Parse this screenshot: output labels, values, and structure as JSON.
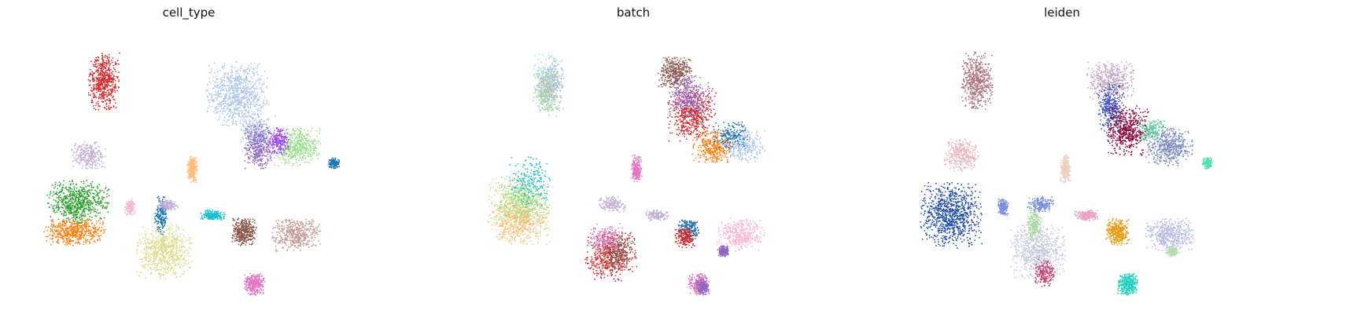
{
  "chart_data": [
    {
      "type": "scatter",
      "title": "cell_type",
      "xlabel": "",
      "ylabel": "",
      "grid": false,
      "axes_visible": false,
      "legend": "none",
      "clusters": [
        {
          "color": "#d62728",
          "x": 0.255,
          "y": 0.82,
          "rx": 0.045,
          "ry": 0.105,
          "density": 1.0
        },
        {
          "color": "#c5b0d5",
          "x": 0.21,
          "y": 0.55,
          "rx": 0.05,
          "ry": 0.05,
          "density": 0.7
        },
        {
          "color": "#2ca02c",
          "x": 0.18,
          "y": 0.38,
          "rx": 0.09,
          "ry": 0.08,
          "density": 1.0
        },
        {
          "color": "#ff7f0e",
          "x": 0.17,
          "y": 0.27,
          "rx": 0.09,
          "ry": 0.05,
          "density": 1.0
        },
        {
          "color": "#dbdb8d",
          "x": 0.43,
          "y": 0.2,
          "rx": 0.08,
          "ry": 0.1,
          "density": 1.0
        },
        {
          "color": "#1f77b4",
          "x": 0.42,
          "y": 0.33,
          "rx": 0.02,
          "ry": 0.07,
          "density": 0.5
        },
        {
          "color": "#aec7e8",
          "x": 0.64,
          "y": 0.77,
          "rx": 0.09,
          "ry": 0.12,
          "density": 1.0
        },
        {
          "color": "#aec7e8",
          "x": 0.7,
          "y": 0.62,
          "rx": 0.05,
          "ry": 0.08,
          "density": 0.8
        },
        {
          "color": "#98df8a",
          "x": 0.81,
          "y": 0.58,
          "rx": 0.07,
          "ry": 0.07,
          "density": 0.9
        },
        {
          "color": "#9467bd",
          "x": 0.7,
          "y": 0.58,
          "rx": 0.04,
          "ry": 0.08,
          "density": 0.7
        },
        {
          "color": "#a340ff",
          "x": 0.76,
          "y": 0.6,
          "rx": 0.03,
          "ry": 0.05,
          "density": 0.6
        },
        {
          "color": "#1f77b4",
          "x": 0.92,
          "y": 0.52,
          "rx": 0.015,
          "ry": 0.02,
          "density": 0.6
        },
        {
          "color": "#ffbb78",
          "x": 0.51,
          "y": 0.5,
          "rx": 0.015,
          "ry": 0.05,
          "density": 0.8
        },
        {
          "color": "#17becf",
          "x": 0.57,
          "y": 0.33,
          "rx": 0.035,
          "ry": 0.02,
          "density": 0.6
        },
        {
          "color": "#8c564b",
          "x": 0.66,
          "y": 0.27,
          "rx": 0.035,
          "ry": 0.05,
          "density": 1.0
        },
        {
          "color": "#c49c94",
          "x": 0.81,
          "y": 0.26,
          "rx": 0.07,
          "ry": 0.06,
          "density": 0.9
        },
        {
          "color": "#e377c2",
          "x": 0.69,
          "y": 0.08,
          "rx": 0.03,
          "ry": 0.04,
          "density": 1.0
        },
        {
          "color": "#f7b6d2",
          "x": 0.33,
          "y": 0.36,
          "rx": 0.015,
          "ry": 0.03,
          "density": 0.5
        },
        {
          "color": "#c5b0d5",
          "x": 0.44,
          "y": 0.37,
          "rx": 0.03,
          "ry": 0.02,
          "density": 0.5
        }
      ]
    },
    {
      "type": "scatter",
      "title": "batch",
      "xlabel": "",
      "ylabel": "",
      "grid": false,
      "axes_visible": false,
      "legend": "none",
      "clusters": [
        {
          "color": "#9edae5",
          "x": 0.255,
          "y": 0.82,
          "rx": 0.045,
          "ry": 0.1,
          "density": 0.6
        },
        {
          "color": "#98df8a",
          "x": 0.25,
          "y": 0.78,
          "rx": 0.04,
          "ry": 0.09,
          "density": 0.5
        },
        {
          "color": "#c5b0d5",
          "x": 0.26,
          "y": 0.8,
          "rx": 0.04,
          "ry": 0.09,
          "density": 0.4
        },
        {
          "color": "#dbdb8d",
          "x": 0.17,
          "y": 0.35,
          "rx": 0.09,
          "ry": 0.12,
          "density": 0.8
        },
        {
          "color": "#98df8a",
          "x": 0.18,
          "y": 0.38,
          "rx": 0.08,
          "ry": 0.1,
          "density": 0.5
        },
        {
          "color": "#ffbb78",
          "x": 0.17,
          "y": 0.3,
          "rx": 0.08,
          "ry": 0.08,
          "density": 0.5
        },
        {
          "color": "#17becf",
          "x": 0.2,
          "y": 0.45,
          "rx": 0.06,
          "ry": 0.1,
          "density": 0.3
        },
        {
          "color": "#d62728",
          "x": 0.43,
          "y": 0.18,
          "rx": 0.07,
          "ry": 0.09,
          "density": 0.7
        },
        {
          "color": "#8c564b",
          "x": 0.46,
          "y": 0.2,
          "rx": 0.05,
          "ry": 0.07,
          "density": 0.6
        },
        {
          "color": "#e377c2",
          "x": 0.42,
          "y": 0.25,
          "rx": 0.05,
          "ry": 0.05,
          "density": 0.4
        },
        {
          "color": "#8c564b",
          "x": 0.62,
          "y": 0.85,
          "rx": 0.05,
          "ry": 0.06,
          "density": 0.8
        },
        {
          "color": "#d62728",
          "x": 0.67,
          "y": 0.7,
          "rx": 0.07,
          "ry": 0.1,
          "density": 0.8
        },
        {
          "color": "#9467bd",
          "x": 0.66,
          "y": 0.76,
          "rx": 0.06,
          "ry": 0.08,
          "density": 0.6
        },
        {
          "color": "#ff7f0e",
          "x": 0.73,
          "y": 0.58,
          "rx": 0.06,
          "ry": 0.06,
          "density": 0.7
        },
        {
          "color": "#aec7e8",
          "x": 0.82,
          "y": 0.58,
          "rx": 0.06,
          "ry": 0.06,
          "density": 0.6
        },
        {
          "color": "#1f77b4",
          "x": 0.78,
          "y": 0.62,
          "rx": 0.05,
          "ry": 0.05,
          "density": 0.4
        },
        {
          "color": "#e377c2",
          "x": 0.51,
          "y": 0.5,
          "rx": 0.015,
          "ry": 0.05,
          "density": 0.7
        },
        {
          "color": "#f7b6d2",
          "x": 0.81,
          "y": 0.26,
          "rx": 0.07,
          "ry": 0.06,
          "density": 0.8
        },
        {
          "color": "#9467bd",
          "x": 0.76,
          "y": 0.2,
          "rx": 0.015,
          "ry": 0.02,
          "density": 0.7
        },
        {
          "color": "#1f77b4",
          "x": 0.66,
          "y": 0.28,
          "rx": 0.03,
          "ry": 0.04,
          "density": 0.6
        },
        {
          "color": "#d62728",
          "x": 0.65,
          "y": 0.25,
          "rx": 0.03,
          "ry": 0.04,
          "density": 0.5
        },
        {
          "color": "#c5b0d5",
          "x": 0.57,
          "y": 0.33,
          "rx": 0.035,
          "ry": 0.02,
          "density": 0.5
        },
        {
          "color": "#e377c2",
          "x": 0.69,
          "y": 0.08,
          "rx": 0.03,
          "ry": 0.04,
          "density": 0.8
        },
        {
          "color": "#9467bd",
          "x": 0.7,
          "y": 0.07,
          "rx": 0.02,
          "ry": 0.03,
          "density": 0.6
        },
        {
          "color": "#c5b0d5",
          "x": 0.44,
          "y": 0.37,
          "rx": 0.04,
          "ry": 0.03,
          "density": 0.5
        }
      ]
    },
    {
      "type": "scatter",
      "title": "leiden",
      "xlabel": "",
      "ylabel": "",
      "grid": false,
      "axes_visible": false,
      "legend": "none",
      "clusters": [
        {
          "color": "#ad7282",
          "x": 0.255,
          "y": 0.82,
          "rx": 0.045,
          "ry": 0.105,
          "density": 1.0
        },
        {
          "color": "#e8b8c1",
          "x": 0.21,
          "y": 0.55,
          "rx": 0.05,
          "ry": 0.06,
          "density": 0.8
        },
        {
          "color": "#1c4ba6",
          "x": 0.18,
          "y": 0.33,
          "rx": 0.09,
          "ry": 0.12,
          "density": 1.0
        },
        {
          "color": "#c6c8db",
          "x": 0.43,
          "y": 0.2,
          "rx": 0.08,
          "ry": 0.1,
          "density": 1.0
        },
        {
          "color": "#a8d5a2",
          "x": 0.42,
          "y": 0.3,
          "rx": 0.02,
          "ry": 0.06,
          "density": 0.6
        },
        {
          "color": "#c83d6c",
          "x": 0.45,
          "y": 0.12,
          "rx": 0.03,
          "ry": 0.05,
          "density": 0.5
        },
        {
          "color": "#7b90dd",
          "x": 0.44,
          "y": 0.37,
          "rx": 0.04,
          "ry": 0.03,
          "density": 0.6
        },
        {
          "color": "#c3a7c1",
          "x": 0.64,
          "y": 0.82,
          "rx": 0.07,
          "ry": 0.07,
          "density": 0.8
        },
        {
          "color": "#3b4cc0",
          "x": 0.64,
          "y": 0.72,
          "rx": 0.04,
          "ry": 0.09,
          "density": 0.7
        },
        {
          "color": "#8b0a3c",
          "x": 0.69,
          "y": 0.64,
          "rx": 0.06,
          "ry": 0.09,
          "density": 0.9
        },
        {
          "color": "#7b8bc0",
          "x": 0.81,
          "y": 0.58,
          "rx": 0.07,
          "ry": 0.07,
          "density": 0.9
        },
        {
          "color": "#63c9a0",
          "x": 0.76,
          "y": 0.64,
          "rx": 0.04,
          "ry": 0.04,
          "density": 0.5
        },
        {
          "color": "#56e0a6",
          "x": 0.92,
          "y": 0.52,
          "rx": 0.015,
          "ry": 0.02,
          "density": 0.6
        },
        {
          "color": "#eecfbe",
          "x": 0.51,
          "y": 0.5,
          "rx": 0.015,
          "ry": 0.05,
          "density": 0.8
        },
        {
          "color": "#e8a1c4",
          "x": 0.57,
          "y": 0.33,
          "rx": 0.035,
          "ry": 0.02,
          "density": 0.6
        },
        {
          "color": "#e89a16",
          "x": 0.66,
          "y": 0.27,
          "rx": 0.035,
          "ry": 0.05,
          "density": 1.0
        },
        {
          "color": "#b7b9e6",
          "x": 0.81,
          "y": 0.26,
          "rx": 0.07,
          "ry": 0.06,
          "density": 0.9
        },
        {
          "color": "#b5dcb0",
          "x": 0.82,
          "y": 0.2,
          "rx": 0.02,
          "ry": 0.02,
          "density": 0.6
        },
        {
          "color": "#27d0c0",
          "x": 0.69,
          "y": 0.08,
          "rx": 0.03,
          "ry": 0.04,
          "density": 1.0
        },
        {
          "color": "#7b90dd",
          "x": 0.33,
          "y": 0.36,
          "rx": 0.015,
          "ry": 0.03,
          "density": 0.6
        }
      ]
    }
  ]
}
